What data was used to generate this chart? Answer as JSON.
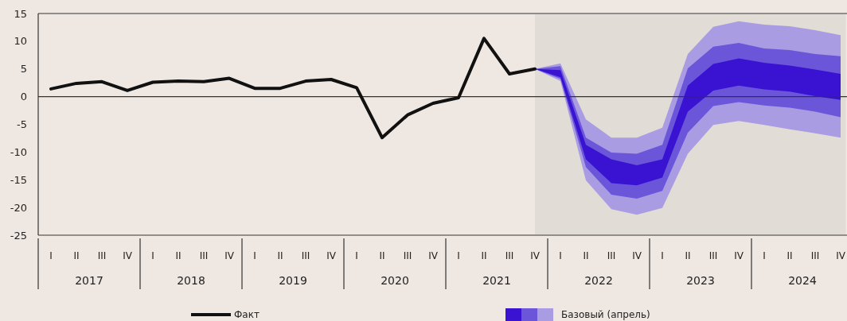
{
  "chart_data": {
    "type": "line",
    "categories": [
      "I",
      "II",
      "III",
      "IV",
      "I",
      "II",
      "III",
      "IV",
      "I",
      "II",
      "III",
      "IV",
      "I",
      "II",
      "III",
      "IV",
      "I",
      "II",
      "III",
      "IV",
      "I",
      "II",
      "III",
      "IV",
      "I",
      "II",
      "III",
      "IV",
      "I",
      "II",
      "III",
      "IV"
    ],
    "series": [
      {
        "name": "Факт",
        "color": "#111111",
        "values": [
          1.4,
          2.4,
          2.7,
          1.1,
          2.6,
          2.8,
          2.7,
          3.3,
          1.5,
          1.5,
          2.8,
          3.1,
          1.6,
          -7.4,
          -3.3,
          -1.2,
          -0.2,
          10.5,
          4.1,
          5.0,
          null,
          null,
          null,
          null,
          null,
          null,
          null,
          null,
          null,
          null,
          null,
          null
        ]
      },
      {
        "name": "Базовый (апрель)",
        "color": "#aa9ce2",
        "values": [
          null,
          null,
          null,
          null,
          null,
          null,
          null,
          null,
          null,
          null,
          null,
          null,
          null,
          null,
          null,
          null,
          null,
          null,
          null,
          null,
          null,
          null,
          null,
          null,
          null,
          null,
          null,
          null,
          null,
          null,
          null,
          null
        ],
        "upper": [
          null,
          null,
          null,
          null,
          null,
          null,
          null,
          null,
          null,
          null,
          null,
          null,
          null,
          null,
          null,
          null,
          null,
          null,
          null,
          5.0,
          6.0,
          -4.1,
          -7.4,
          -7.4,
          -5.6,
          7.7,
          12.6,
          13.6,
          13.0,
          12.7,
          12.0,
          11.1
        ],
        "lower": [
          null,
          null,
          null,
          null,
          null,
          null,
          null,
          null,
          null,
          null,
          null,
          null,
          null,
          null,
          null,
          null,
          null,
          null,
          null,
          5.0,
          2.8,
          -15.1,
          -20.3,
          -21.3,
          -20.1,
          -10.3,
          -5.1,
          -4.4,
          -5.1,
          -5.9,
          -6.6,
          -7.4
        ]
      },
      {
        "color": "#6b56da",
        "values": [
          null,
          null,
          null,
          null,
          null,
          null,
          null,
          null,
          null,
          null,
          null,
          null,
          null,
          null,
          null,
          null,
          null,
          null,
          null,
          null,
          null,
          null,
          null,
          null,
          null,
          null,
          null,
          null,
          null,
          null,
          null,
          null
        ],
        "upper": [
          null,
          null,
          null,
          null,
          null,
          null,
          null,
          null,
          null,
          null,
          null,
          null,
          null,
          null,
          null,
          null,
          null,
          null,
          null,
          5.0,
          5.5,
          -7.4,
          -10.1,
          -10.3,
          -8.7,
          5.1,
          9.0,
          9.7,
          8.7,
          8.4,
          7.7,
          7.3
        ],
        "lower": [
          null,
          null,
          null,
          null,
          null,
          null,
          null,
          null,
          null,
          null,
          null,
          null,
          null,
          null,
          null,
          null,
          null,
          null,
          null,
          5.0,
          3.2,
          -12.7,
          -17.7,
          -18.4,
          -17.0,
          -6.5,
          -1.7,
          -1.0,
          -1.6,
          -2.0,
          -2.7,
          -3.7
        ]
      },
      {
        "color": "#3a12d2",
        "values": [
          null,
          null,
          null,
          null,
          null,
          null,
          null,
          null,
          null,
          null,
          null,
          null,
          null,
          null,
          null,
          null,
          null,
          null,
          null,
          null,
          null,
          null,
          null,
          null,
          null,
          null,
          null,
          null,
          null,
          null,
          null,
          null
        ],
        "upper": [
          null,
          null,
          null,
          null,
          null,
          null,
          null,
          null,
          null,
          null,
          null,
          null,
          null,
          null,
          null,
          null,
          null,
          null,
          null,
          5.0,
          4.8,
          -8.7,
          -11.3,
          -12.4,
          -11.3,
          2.0,
          5.9,
          6.9,
          6.1,
          5.6,
          4.9,
          4.1
        ],
        "lower": [
          null,
          null,
          null,
          null,
          null,
          null,
          null,
          null,
          null,
          null,
          null,
          null,
          null,
          null,
          null,
          null,
          null,
          null,
          null,
          5.0,
          3.5,
          -11.3,
          -15.6,
          -16.0,
          -14.6,
          -2.7,
          1.1,
          2.0,
          1.3,
          0.9,
          0.1,
          -0.6
        ]
      }
    ],
    "ylim": [
      -25,
      15
    ],
    "yticks": [
      -25,
      -20,
      -15,
      -10,
      -5,
      0,
      5,
      10,
      15
    ],
    "annotations": [
      "2017",
      "2018",
      "2019",
      "2020",
      "2021",
      "2022",
      "2023",
      "2024"
    ],
    "ref_lines": [
      {
        "axis": "y",
        "value": 0,
        "color": "#333333"
      }
    ],
    "grid": false,
    "legend": "bottom"
  }
}
